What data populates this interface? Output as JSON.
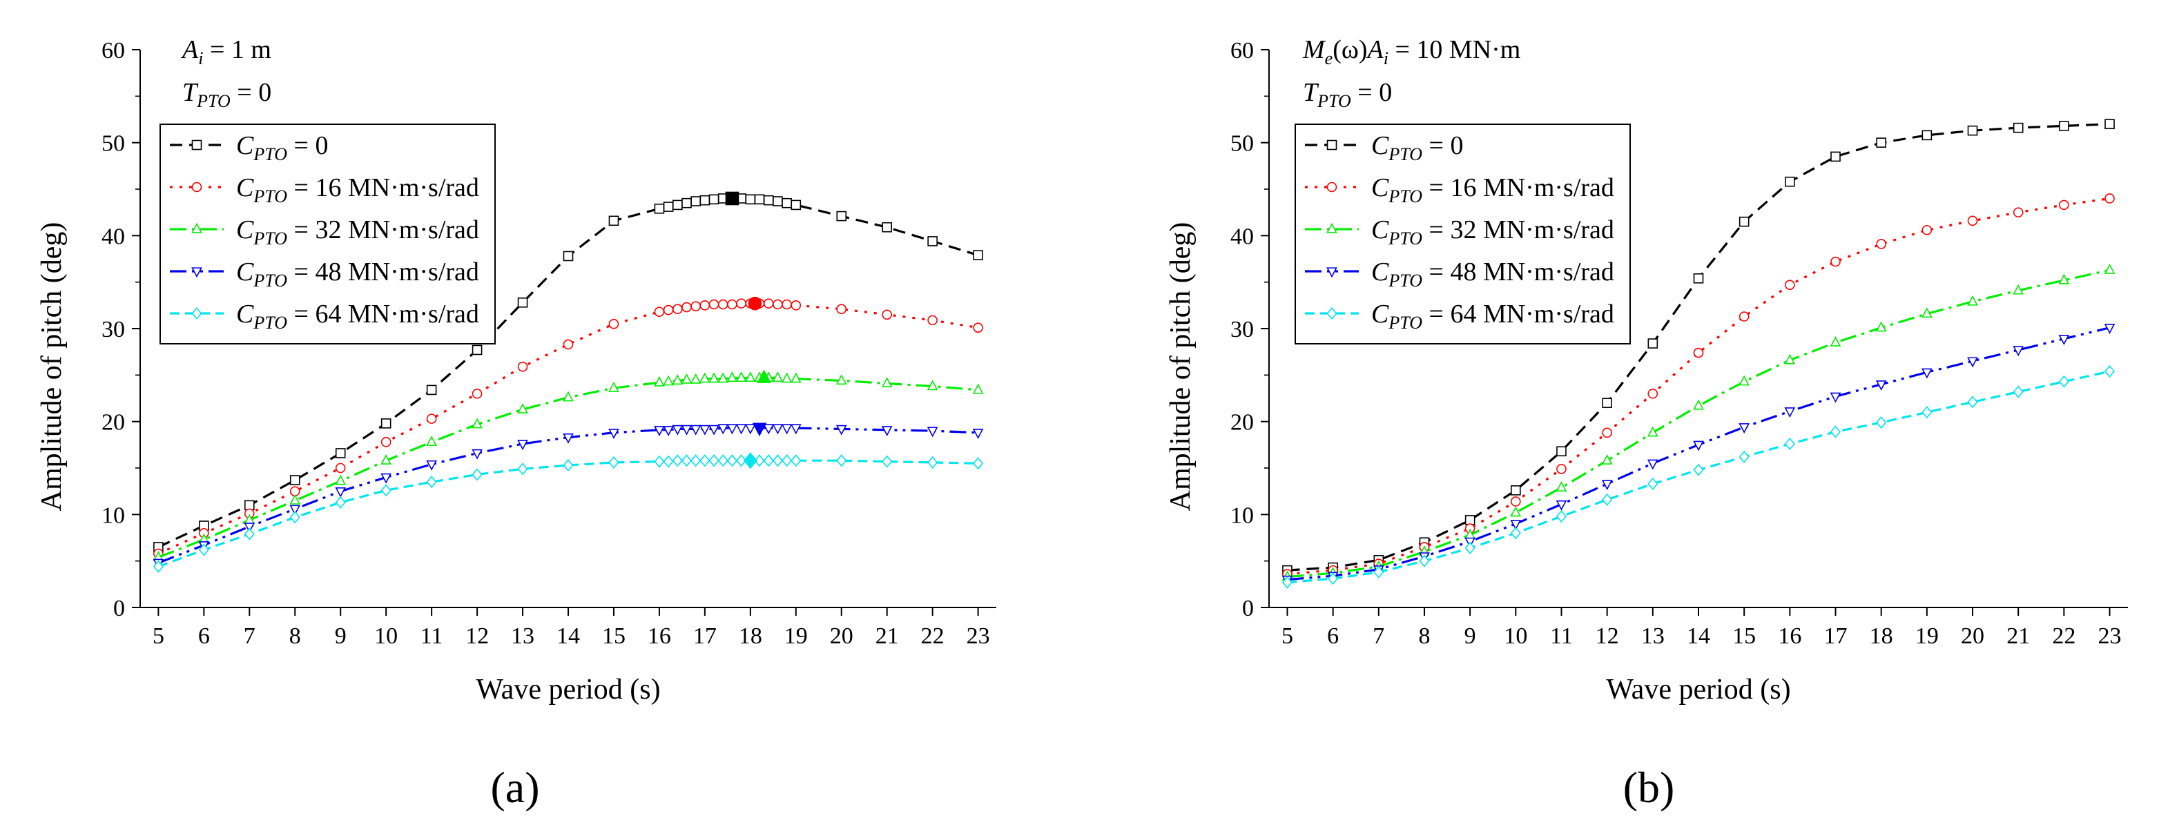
{
  "chart_data": [
    {
      "type": "line",
      "panel_label": "(a)",
      "annotations": [
        {
          "base": "A",
          "sub": "i",
          "rest": " = 1 m"
        },
        {
          "base": "T",
          "sub": "PTO",
          "rest": " = 0"
        }
      ],
      "xlabel": "Wave period (s)",
      "ylabel": "Amplitude of pitch (deg)",
      "xlim": [
        4.6,
        23.4
      ],
      "ylim": [
        0,
        60
      ],
      "xticks": [
        5,
        6,
        7,
        8,
        9,
        10,
        11,
        12,
        13,
        14,
        15,
        16,
        17,
        18,
        19,
        20,
        21,
        22,
        23
      ],
      "yticks": [
        0,
        10,
        20,
        30,
        40,
        50,
        60
      ],
      "legend_position": "top-left",
      "series": [
        {
          "name": "C_PTO = 0",
          "legend": {
            "base": "C",
            "sub": "PTO",
            "rest": " = 0"
          },
          "color": "#000000",
          "dash": "18,10",
          "marker": "square",
          "x": [
            5,
            6,
            7,
            8,
            9,
            10,
            11,
            12,
            13,
            14,
            15,
            16,
            16.2,
            16.4,
            16.6,
            16.8,
            17,
            17.2,
            17.4,
            17.6,
            17.8,
            18,
            18.2,
            18.4,
            18.6,
            18.8,
            19,
            20,
            21,
            22,
            23
          ],
          "y": [
            6.5,
            8.8,
            11.0,
            13.7,
            16.6,
            19.8,
            23.4,
            27.7,
            32.8,
            37.8,
            41.6,
            42.9,
            43.1,
            43.3,
            43.5,
            43.7,
            43.8,
            43.9,
            44.0,
            44.0,
            44.0,
            43.9,
            43.9,
            43.8,
            43.7,
            43.5,
            43.3,
            42.1,
            40.9,
            39.4,
            37.9
          ],
          "peak": {
            "x": 17.6,
            "y": 44.0
          }
        },
        {
          "name": "C_PTO = 16 MN·m·s/rad",
          "legend": {
            "base": "C",
            "sub": "PTO",
            "rest": " = 16 MN·m·s/rad"
          },
          "color": "#ff0000",
          "dash": "4,10",
          "marker": "circle",
          "x": [
            5,
            6,
            7,
            8,
            9,
            10,
            11,
            12,
            13,
            14,
            15,
            16,
            16.2,
            16.4,
            16.6,
            16.8,
            17,
            17.2,
            17.4,
            17.6,
            17.8,
            18,
            18.2,
            18.4,
            18.6,
            18.8,
            19,
            20,
            21,
            22,
            23
          ],
          "y": [
            5.8,
            8.0,
            10.1,
            12.5,
            15.0,
            17.8,
            20.3,
            23.0,
            25.9,
            28.3,
            30.5,
            31.8,
            32.0,
            32.1,
            32.3,
            32.4,
            32.5,
            32.6,
            32.6,
            32.6,
            32.7,
            32.7,
            32.7,
            32.7,
            32.6,
            32.6,
            32.5,
            32.1,
            31.5,
            30.9,
            30.1
          ],
          "peak": {
            "x": 18.1,
            "y": 32.7
          }
        },
        {
          "name": "C_PTO = 32 MN·m·s/rad",
          "legend": {
            "base": "C",
            "sub": "PTO",
            "rest": " = 32 MN·m·s/rad"
          },
          "color": "#00ee00",
          "dash": "24,8,4,8",
          "marker": "triangle",
          "x": [
            5,
            6,
            7,
            8,
            9,
            10,
            11,
            12,
            13,
            14,
            15,
            16,
            16.2,
            16.4,
            16.6,
            16.8,
            17,
            17.2,
            17.4,
            17.6,
            17.8,
            18,
            18.2,
            18.4,
            18.6,
            18.8,
            19,
            20,
            21,
            22,
            23
          ],
          "y": [
            5.4,
            7.3,
            9.4,
            11.5,
            13.6,
            15.8,
            17.8,
            19.7,
            21.3,
            22.6,
            23.6,
            24.2,
            24.3,
            24.4,
            24.5,
            24.5,
            24.6,
            24.6,
            24.6,
            24.7,
            24.7,
            24.7,
            24.7,
            24.7,
            24.7,
            24.6,
            24.6,
            24.4,
            24.1,
            23.8,
            23.4
          ],
          "peak": {
            "x": 18.3,
            "y": 24.7
          }
        },
        {
          "name": "C_PTO = 48 MN·m·s/rad",
          "legend": {
            "base": "C",
            "sub": "PTO",
            "rest": " = 48 MN·m·s/rad"
          },
          "color": "#0000ee",
          "dash": "24,8,4,8,4,8",
          "marker": "triangle-down",
          "x": [
            5,
            6,
            7,
            8,
            9,
            10,
            11,
            12,
            13,
            14,
            15,
            16,
            16.2,
            16.4,
            16.6,
            16.8,
            17,
            17.2,
            17.4,
            17.6,
            17.8,
            18,
            18.2,
            18.4,
            18.6,
            18.8,
            19,
            20,
            21,
            22,
            23
          ],
          "y": [
            4.8,
            6.7,
            8.7,
            10.6,
            12.5,
            14.0,
            15.4,
            16.6,
            17.6,
            18.3,
            18.8,
            19.1,
            19.1,
            19.2,
            19.2,
            19.2,
            19.2,
            19.2,
            19.3,
            19.3,
            19.3,
            19.3,
            19.3,
            19.3,
            19.3,
            19.3,
            19.3,
            19.2,
            19.1,
            19.0,
            18.8
          ],
          "peak": {
            "x": 18.2,
            "y": 19.3
          }
        },
        {
          "name": "C_PTO = 64 MN·m·s/rad",
          "legend": {
            "base": "C",
            "sub": "PTO",
            "rest": " = 64 MN·m·s/rad"
          },
          "color": "#00e5ee",
          "dash": "14,8",
          "marker": "diamond",
          "x": [
            5,
            6,
            7,
            8,
            9,
            10,
            11,
            12,
            13,
            14,
            15,
            16,
            16.2,
            16.4,
            16.6,
            16.8,
            17,
            17.2,
            17.4,
            17.6,
            17.8,
            18,
            18.2,
            18.4,
            18.6,
            18.8,
            19,
            20,
            21,
            22,
            23
          ],
          "y": [
            4.4,
            6.2,
            7.9,
            9.7,
            11.3,
            12.6,
            13.5,
            14.3,
            14.9,
            15.3,
            15.6,
            15.7,
            15.7,
            15.8,
            15.8,
            15.8,
            15.8,
            15.8,
            15.8,
            15.8,
            15.8,
            15.8,
            15.8,
            15.8,
            15.8,
            15.8,
            15.8,
            15.8,
            15.7,
            15.6,
            15.5
          ],
          "peak": {
            "x": 18.0,
            "y": 15.8
          }
        }
      ]
    },
    {
      "type": "line",
      "panel_label": "(b)",
      "annotations": [
        {
          "base": "M",
          "sub": "e",
          "rest": "(ω)",
          "base2": "A",
          "sub2": "i",
          "rest2": " = 10 MN·m"
        },
        {
          "base": "T",
          "sub": "PTO",
          "rest": " = 0"
        }
      ],
      "xlabel": "Wave period (s)",
      "ylabel": "Amplitude of pitch (deg)",
      "xlim": [
        4.6,
        23.4
      ],
      "ylim": [
        0,
        60
      ],
      "xticks": [
        5,
        6,
        7,
        8,
        9,
        10,
        11,
        12,
        13,
        14,
        15,
        16,
        17,
        18,
        19,
        20,
        21,
        22,
        23
      ],
      "yticks": [
        0,
        10,
        20,
        30,
        40,
        50,
        60
      ],
      "legend_position": "top-left",
      "series": [
        {
          "name": "C_PTO = 0",
          "legend": {
            "base": "C",
            "sub": "PTO",
            "rest": " = 0"
          },
          "color": "#000000",
          "dash": "18,10",
          "marker": "square",
          "x": [
            5,
            6,
            7,
            8,
            9,
            10,
            11,
            12,
            13,
            14,
            15,
            16,
            17,
            18,
            19,
            20,
            21,
            22,
            23
          ],
          "y": [
            4.0,
            4.3,
            5.1,
            7.0,
            9.4,
            12.6,
            16.8,
            22.0,
            28.4,
            35.4,
            41.5,
            45.8,
            48.5,
            50.0,
            50.8,
            51.3,
            51.6,
            51.8,
            52.0
          ]
        },
        {
          "name": "C_PTO = 16 MN·m·s/rad",
          "legend": {
            "base": "C",
            "sub": "PTO",
            "rest": " = 16 MN·m·s/rad"
          },
          "color": "#ff0000",
          "dash": "4,10",
          "marker": "circle",
          "x": [
            5,
            6,
            7,
            8,
            9,
            10,
            11,
            12,
            13,
            14,
            15,
            16,
            17,
            18,
            19,
            20,
            21,
            22,
            23
          ],
          "y": [
            3.6,
            4.0,
            4.7,
            6.5,
            8.5,
            11.4,
            14.9,
            18.8,
            23.0,
            27.4,
            31.3,
            34.7,
            37.2,
            39.1,
            40.6,
            41.6,
            42.5,
            43.3,
            44.0
          ]
        },
        {
          "name": "C_PTO = 32 MN·m·s/rad",
          "legend": {
            "base": "C",
            "sub": "PTO",
            "rest": " = 32 MN·m·s/rad"
          },
          "color": "#00ee00",
          "dash": "24,8,4,8",
          "marker": "triangle",
          "x": [
            5,
            6,
            7,
            8,
            9,
            10,
            11,
            12,
            13,
            14,
            15,
            16,
            17,
            18,
            19,
            20,
            21,
            22,
            23
          ],
          "y": [
            3.3,
            3.7,
            4.4,
            6.0,
            7.8,
            10.2,
            12.9,
            15.8,
            18.8,
            21.7,
            24.3,
            26.6,
            28.5,
            30.1,
            31.6,
            32.9,
            34.1,
            35.2,
            36.3
          ]
        },
        {
          "name": "C_PTO = 48 MN·m·s/rad",
          "legend": {
            "base": "C",
            "sub": "PTO",
            "rest": " = 48 MN·m·s/rad"
          },
          "color": "#0000ee",
          "dash": "24,8,4,8,4,8",
          "marker": "triangle-down",
          "x": [
            5,
            6,
            7,
            8,
            9,
            10,
            11,
            12,
            13,
            14,
            15,
            16,
            17,
            18,
            19,
            20,
            21,
            22,
            23
          ],
          "y": [
            3.0,
            3.4,
            4.1,
            5.5,
            7.1,
            9.0,
            11.1,
            13.3,
            15.5,
            17.5,
            19.4,
            21.1,
            22.7,
            24.0,
            25.3,
            26.5,
            27.7,
            28.9,
            30.1
          ]
        },
        {
          "name": "C_PTO = 64 MN·m·s/rad",
          "legend": {
            "base": "C",
            "sub": "PTO",
            "rest": " = 64 MN·m·s/rad"
          },
          "color": "#00e5ee",
          "dash": "14,8",
          "marker": "diamond",
          "x": [
            5,
            6,
            7,
            8,
            9,
            10,
            11,
            12,
            13,
            14,
            15,
            16,
            17,
            18,
            19,
            20,
            21,
            22,
            23
          ],
          "y": [
            2.7,
            3.1,
            3.8,
            5.0,
            6.4,
            8.0,
            9.8,
            11.6,
            13.3,
            14.8,
            16.2,
            17.6,
            18.9,
            19.9,
            21.0,
            22.1,
            23.2,
            24.3,
            25.4
          ]
        }
      ]
    }
  ]
}
